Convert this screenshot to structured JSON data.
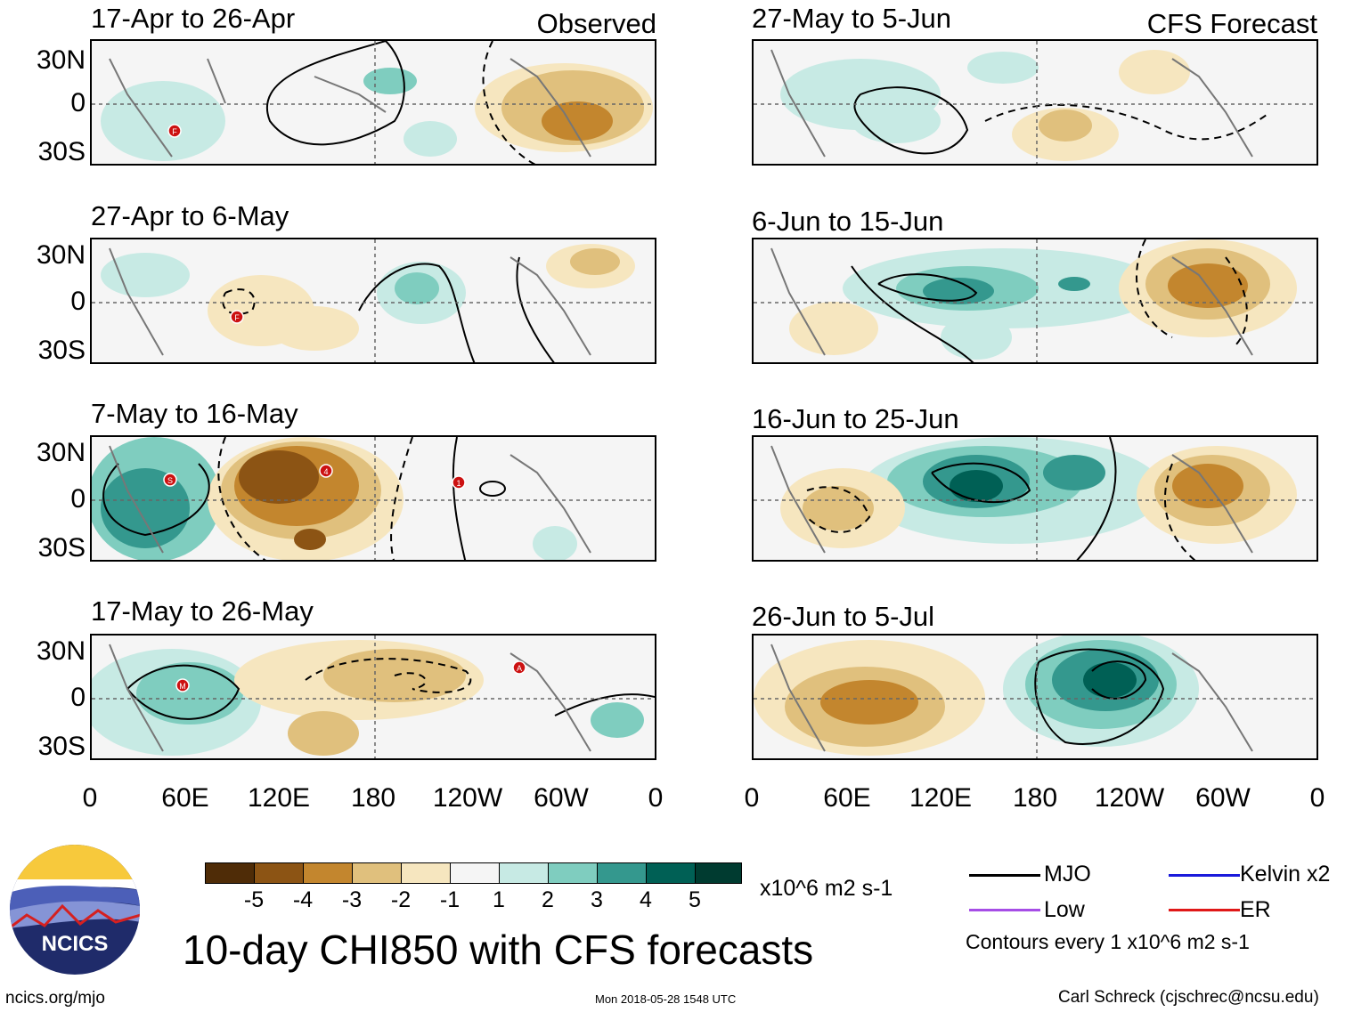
{
  "observed_tag": "Observed",
  "forecast_tag": "CFS Forecast",
  "panels_left": [
    {
      "title": "17-Apr to 26-Apr",
      "storms": [
        "F"
      ]
    },
    {
      "title": "27-Apr to 6-May",
      "storms": [
        "F"
      ]
    },
    {
      "title": "7-May to 16-May",
      "storms": [
        "S",
        "4",
        "1"
      ]
    },
    {
      "title": "17-May to 26-May",
      "storms": [
        "M",
        "A"
      ]
    }
  ],
  "panels_right": [
    {
      "title": "27-May to 5-Jun"
    },
    {
      "title": "6-Jun to 15-Jun"
    },
    {
      "title": "16-Jun to 25-Jun"
    },
    {
      "title": "26-Jun to 5-Jul"
    }
  ],
  "lat_labels": [
    "30N",
    "0",
    "30S"
  ],
  "lon_labels": [
    "0",
    "60E",
    "120E",
    "180",
    "120W",
    "60W",
    "0"
  ],
  "colorbar": {
    "colors": [
      "#4f2c07",
      "#8c5414",
      "#c3862e",
      "#e0c07d",
      "#f6e6bf",
      "#f5f5f5",
      "#c7eae4",
      "#7fcdbf",
      "#34988e",
      "#006055",
      "#003b30"
    ],
    "labels": [
      "-5",
      "-4",
      "-3",
      "-2",
      "-1",
      "1",
      "2",
      "3",
      "4",
      "5"
    ],
    "units": "x10^6 m2 s-1"
  },
  "legend": {
    "mjo": "MJO",
    "kelvin": "Kelvin x2",
    "low": "Low",
    "er": "ER",
    "contour_note": "Contours every 1 x10^6 m2 s-1",
    "mjo_color": "#000000",
    "kelvin_color": "#1a1adb",
    "low_color": "#a64de6",
    "er_color": "#e01818"
  },
  "main_title": "10-day CHI850 with CFS forecasts",
  "logo_text": "NCICS",
  "footer_left": "ncics.org/mjo",
  "footer_center": "Mon 2018-05-28 1548 UTC",
  "footer_right": "Carl Schreck (cjschrec@ncsu.edu)"
}
